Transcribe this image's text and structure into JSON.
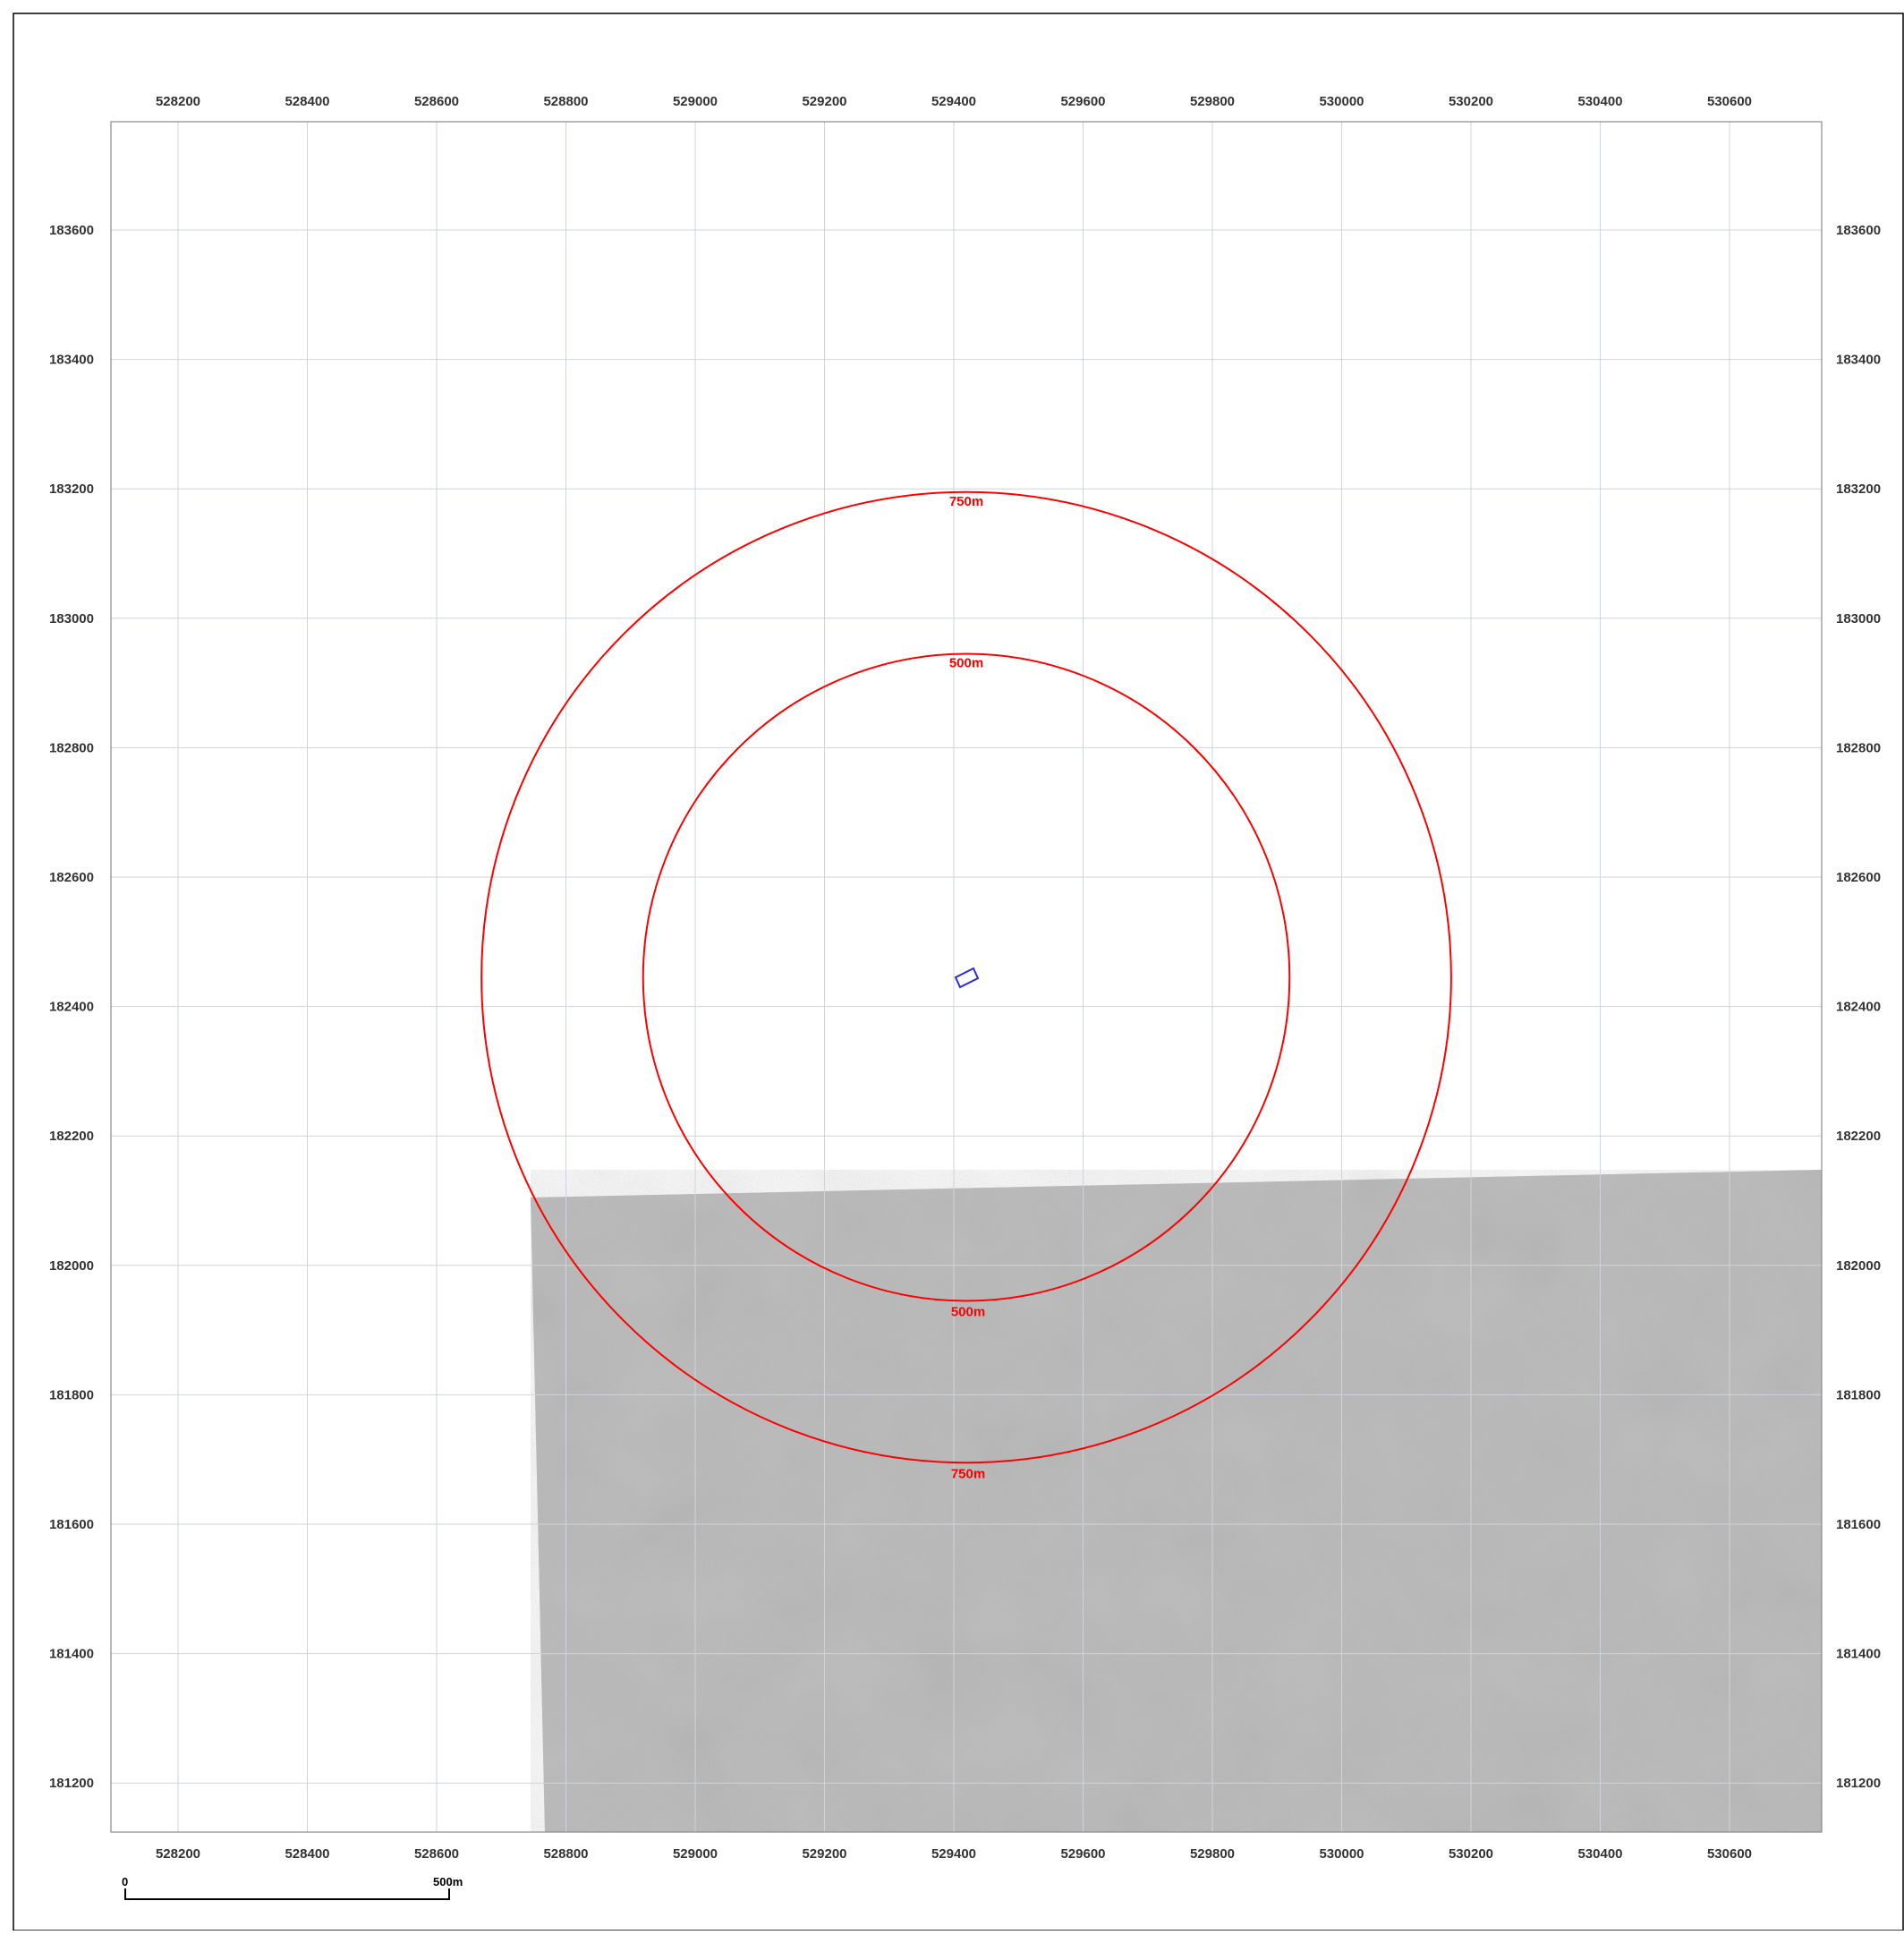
{
  "map": {
    "x_ticks": [
      "528200",
      "528400",
      "528600",
      "528800",
      "529000",
      "529200",
      "529400",
      "529600",
      "529800",
      "530000",
      "530200",
      "530400",
      "530600"
    ],
    "y_ticks": [
      "183600",
      "183400",
      "183200",
      "183000",
      "182800",
      "182600",
      "182400",
      "182200",
      "182000",
      "181800",
      "181600",
      "181400",
      "181200"
    ],
    "buffers": [
      {
        "distance": 500,
        "label": "500m"
      },
      {
        "distance": 750,
        "label": "750m"
      }
    ],
    "colors": {
      "buffer": "#ff0000",
      "site": "#2a2adf",
      "grid": "#cfd4da",
      "imagery": "#b9b9b9"
    },
    "scale_bar": {
      "start_label": "0",
      "end_label": "500m"
    }
  }
}
